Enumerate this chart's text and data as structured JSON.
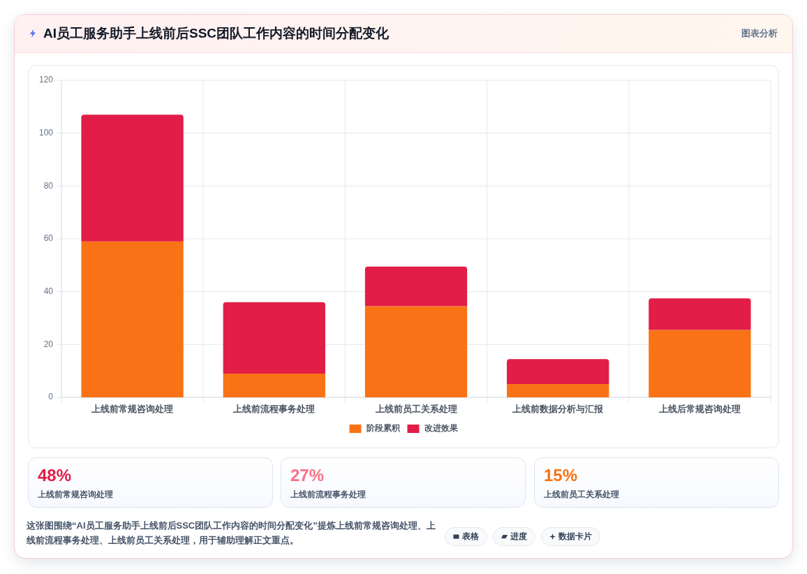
{
  "chart_data": {
    "type": "bar",
    "title": "AI员工服务助手上线前后SSC团队工作内容的时间分配变化",
    "categories": [
      "上线前常规咨询处理",
      "上线前流程事务处理",
      "上线前员工关系处理",
      "上线前数据分析与汇报",
      "上线后常规咨询处理"
    ],
    "series": [
      {
        "name": "阶段累积",
        "color": "#f97316",
        "values": [
          59,
          9,
          34.5,
          5,
          25.5
        ]
      },
      {
        "name": "改进效果",
        "color": "#e11d48",
        "values": [
          48,
          27,
          15,
          9.5,
          12
        ]
      }
    ],
    "stacked": true,
    "ylim": [
      0,
      120
    ],
    "yticks": [
      0,
      20,
      40,
      60,
      80,
      100,
      120
    ],
    "grid": true,
    "legend": "bottom",
    "annotations": [
      "图表分析",
      "48%",
      "上线前常规咨询处理",
      "27%",
      "上线前流程事务处理",
      "15%",
      "上线前员工关系处理",
      "这张图围绕“AI员工服务助手上线前后SSC团队工作内容的时间分配变化”提炼上线前常规咨询处理、上线前流程事务处理、上线前员工关系处理，用于辅助理解正文重点。",
      "表格",
      "进度",
      "数据卡片"
    ]
  }
}
